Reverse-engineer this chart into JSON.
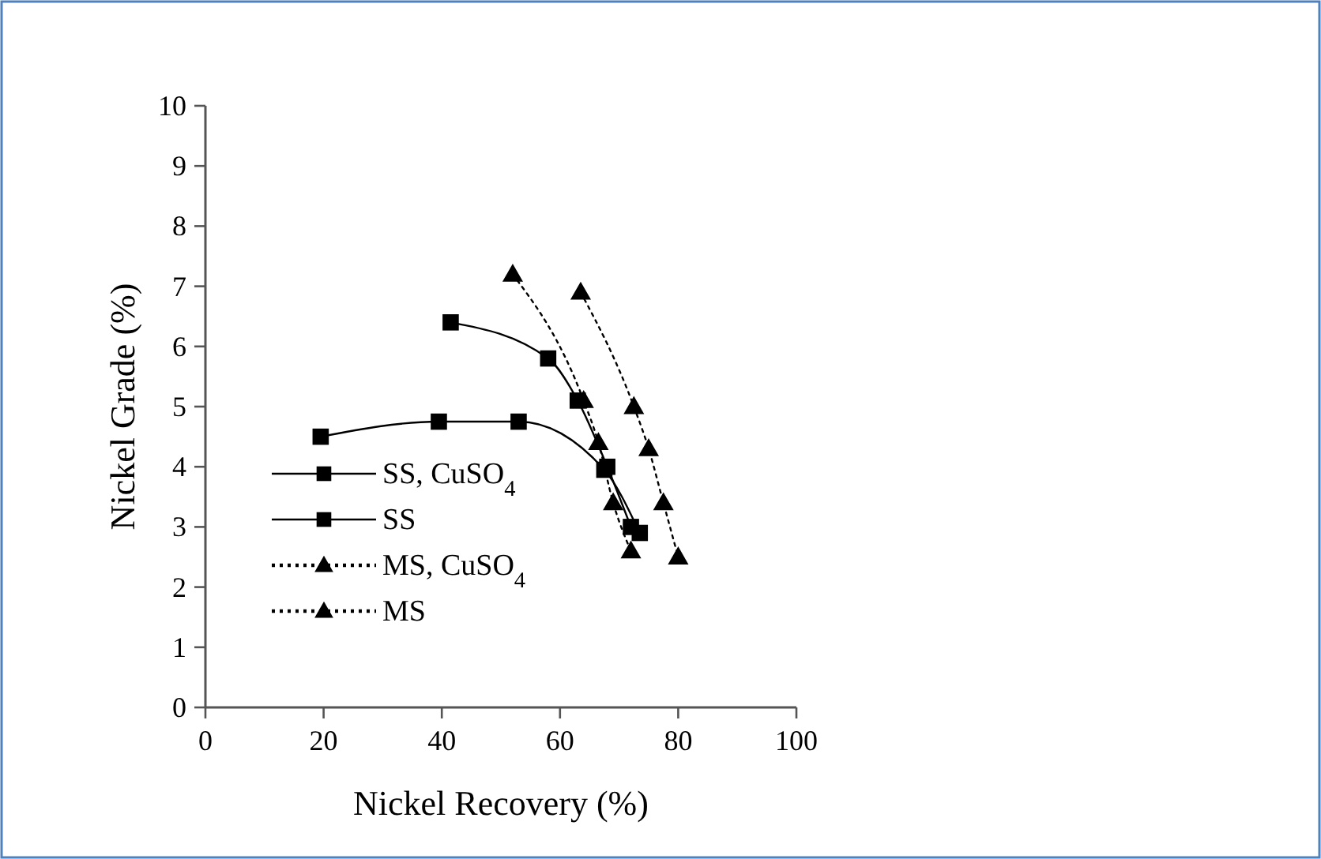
{
  "chart_data": {
    "type": "line",
    "xlabel": "Nickel Recovery (%)",
    "ylabel": "Nickel Grade (%)",
    "xlim": [
      0,
      100
    ],
    "xticks": [
      0,
      20,
      40,
      60,
      80,
      100
    ],
    "ylim": [
      0,
      10
    ],
    "yticks": [
      0,
      1,
      2,
      3,
      4,
      5,
      6,
      7,
      8,
      9,
      10
    ],
    "grid": false,
    "legend": "left",
    "series": [
      {
        "name": "SS, CuSO$_{4}$",
        "color": "#000000",
        "marker": "square",
        "line_style": "solid",
        "x": [
          19.5,
          39.5,
          53,
          67.5,
          73.5
        ],
        "values": [
          4.5,
          4.75,
          4.75,
          3.95,
          2.9
        ]
      },
      {
        "name": "SS",
        "color": "#000000",
        "marker": "square",
        "line_style": "solid",
        "x": [
          41.5,
          58,
          63,
          68,
          72
        ],
        "values": [
          6.4,
          5.8,
          5.1,
          4.0,
          3.0
        ]
      },
      {
        "name": "MS, CuSO$_{4}$",
        "color": "#000000",
        "marker": "triangle",
        "line_style": "dotted",
        "x": [
          63.5,
          72.5,
          75,
          77.5,
          80
        ],
        "values": [
          6.9,
          5.0,
          4.3,
          3.4,
          2.5
        ]
      },
      {
        "name": "MS",
        "color": "#000000",
        "marker": "triangle",
        "line_style": "dotted",
        "x": [
          52,
          64,
          66.5,
          69,
          72
        ],
        "values": [
          7.2,
          5.1,
          4.4,
          3.4,
          2.6
        ]
      }
    ]
  }
}
